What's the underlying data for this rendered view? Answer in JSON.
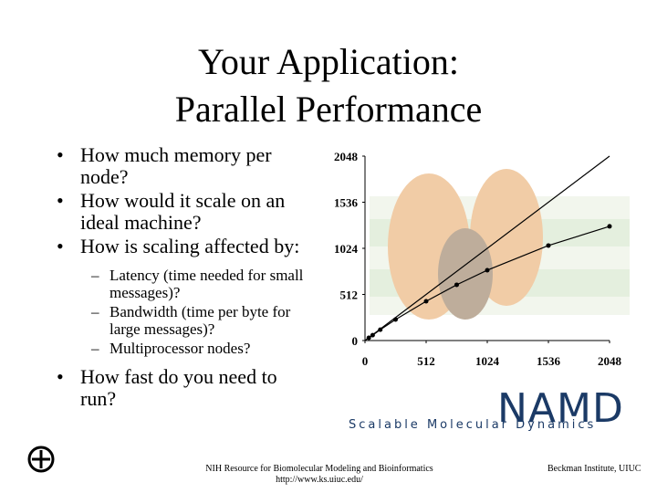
{
  "slide": {
    "title": [
      "Your Application:",
      "Parallel Performance"
    ],
    "bullets": [
      {
        "text": "How much memory per node?"
      },
      {
        "text": "How would it scale on an ideal machine?"
      },
      {
        "text": "How is scaling affected by:",
        "sub": [
          "Latency (time needed for small messages)?",
          "Bandwidth (time per byte for large messages)?",
          "Multiprocessor nodes?"
        ]
      },
      {
        "text": "How fast do you need to run?"
      }
    ],
    "logo": {
      "name": "NAMD",
      "tagline": "Scalable Molecular Dynamics"
    },
    "footer": {
      "center": [
        "NIH Resource for Biomolecular Modeling and Bioinformatics",
        "http://www.ks.uiuc.edu/"
      ],
      "right": "Beckman Institute, UIUC"
    }
  },
  "chart_data": {
    "type": "line",
    "xlim": [
      0,
      2048
    ],
    "ylim": [
      0,
      2048
    ],
    "xticks": [
      0,
      512,
      1024,
      1536,
      2048
    ],
    "yticks": [
      0,
      512,
      1024,
      1536,
      2048
    ],
    "series": [
      {
        "color": "#000000",
        "x": [
          0,
          2048
        ],
        "values": [
          0,
          2048
        ],
        "markers": false
      },
      {
        "color": "#000000",
        "x": [
          32,
          64,
          128,
          256,
          512,
          768,
          1024,
          1536,
          2048
        ],
        "values": [
          30,
          60,
          120,
          233,
          436,
          619,
          781,
          1055,
          1268
        ],
        "markers": true
      }
    ]
  }
}
